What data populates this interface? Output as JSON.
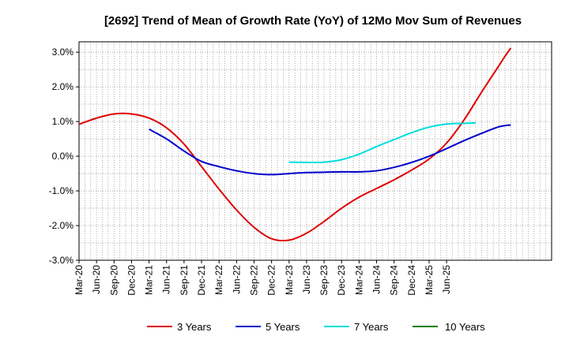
{
  "chart_data": {
    "type": "line",
    "title": "[2692]  Trend of Mean of Growth Rate (YoY) of 12Mo Mov Sum of Revenues",
    "xlabel": "",
    "ylabel": "",
    "ylim": [
      -3.0,
      3.3
    ],
    "yticks": [
      3.0,
      2.0,
      1.0,
      0.0,
      -1.0,
      -2.0,
      -3.0
    ],
    "ytick_labels": [
      "3.0%",
      "2.0%",
      "1.0%",
      "0.0%",
      "-1.0%",
      "-2.0%",
      "-3.0%"
    ],
    "xlim_index": [
      0,
      81
    ],
    "x_start": "Mar-20",
    "x_tick_labels": [
      "Mar-20",
      "Jun-20",
      "Sep-20",
      "Dec-20",
      "Mar-21",
      "Jun-21",
      "Sep-21",
      "Dec-21",
      "Mar-22",
      "Jun-22",
      "Sep-22",
      "Dec-22",
      "Mar-23",
      "Jun-23",
      "Sep-23",
      "Dec-23",
      "Mar-24",
      "Jun-24",
      "Sep-24",
      "Dec-24",
      "Mar-25",
      "Jun-25"
    ],
    "grid": true,
    "legend_position": "bottom",
    "series": [
      {
        "name": "3 Years",
        "color": "#dd0000",
        "points": [
          [
            0,
            0.92
          ],
          [
            3,
            1.1
          ],
          [
            6,
            1.22
          ],
          [
            9,
            1.22
          ],
          [
            12,
            1.1
          ],
          [
            15,
            0.82
          ],
          [
            18,
            0.35
          ],
          [
            21,
            -0.3
          ],
          [
            24,
            -0.95
          ],
          [
            27,
            -1.55
          ],
          [
            30,
            -2.05
          ],
          [
            33,
            -2.38
          ],
          [
            36,
            -2.42
          ],
          [
            39,
            -2.22
          ],
          [
            42,
            -1.88
          ],
          [
            45,
            -1.5
          ],
          [
            48,
            -1.18
          ],
          [
            51,
            -0.93
          ],
          [
            54,
            -0.68
          ],
          [
            57,
            -0.4
          ],
          [
            60,
            -0.08
          ],
          [
            63,
            0.38
          ],
          [
            66,
            1.05
          ],
          [
            69,
            1.85
          ],
          [
            72,
            2.62
          ],
          [
            73,
            2.88
          ],
          [
            74,
            3.12
          ]
        ]
      },
      {
        "name": "5 Years",
        "color": "#0000cc",
        "points": [
          [
            12,
            0.78
          ],
          [
            15,
            0.5
          ],
          [
            18,
            0.15
          ],
          [
            21,
            -0.15
          ],
          [
            24,
            -0.3
          ],
          [
            27,
            -0.42
          ],
          [
            30,
            -0.5
          ],
          [
            33,
            -0.53
          ],
          [
            36,
            -0.5
          ],
          [
            39,
            -0.47
          ],
          [
            42,
            -0.46
          ],
          [
            45,
            -0.45
          ],
          [
            48,
            -0.45
          ],
          [
            51,
            -0.42
          ],
          [
            54,
            -0.32
          ],
          [
            57,
            -0.18
          ],
          [
            60,
            0.0
          ],
          [
            63,
            0.22
          ],
          [
            66,
            0.45
          ],
          [
            69,
            0.66
          ],
          [
            72,
            0.85
          ],
          [
            74,
            0.9
          ]
        ]
      },
      {
        "name": "7 Years",
        "color": "#00dddd",
        "points": [
          [
            36,
            -0.17
          ],
          [
            39,
            -0.18
          ],
          [
            42,
            -0.17
          ],
          [
            45,
            -0.1
          ],
          [
            48,
            0.06
          ],
          [
            51,
            0.28
          ],
          [
            54,
            0.48
          ],
          [
            57,
            0.68
          ],
          [
            60,
            0.84
          ],
          [
            63,
            0.93
          ],
          [
            66,
            0.95
          ],
          [
            68,
            0.96
          ]
        ]
      },
      {
        "name": "10 Years",
        "color": "#008000",
        "points": []
      }
    ]
  }
}
